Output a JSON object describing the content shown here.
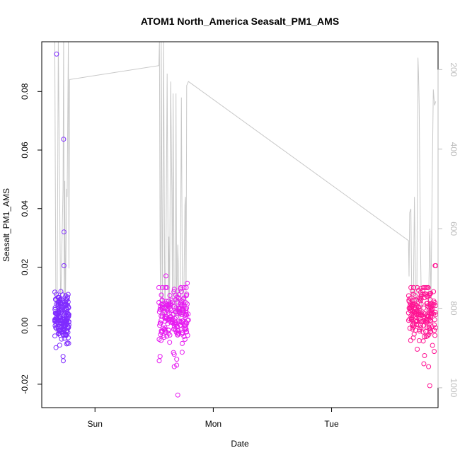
{
  "chart_data": {
    "type": "scatter",
    "title": "ATOM1 North_America Seasalt_PM1_AMS",
    "xlabel": "Date",
    "ylabel": "Seasalt_PM1_AMS",
    "x_ticks": [
      "Sun",
      "Mon",
      "Tue"
    ],
    "y_ticks": [
      "-0.02",
      "0.00",
      "0.02",
      "0.04",
      "0.06",
      "0.08"
    ],
    "y_tick_values": [
      -0.02,
      0.0,
      0.02,
      0.04,
      0.06,
      0.08
    ],
    "ylim": [
      -0.028,
      0.097
    ],
    "xlim_days": [
      -0.45,
      2.9
    ],
    "right_axis": {
      "ticks": [
        "200",
        "400",
        "600",
        "800",
        "1000"
      ],
      "tick_values": [
        200,
        400,
        600,
        800,
        1000
      ],
      "range_top": 130,
      "range_bottom": 1050,
      "color": "#bdbdbd",
      "description": "pressure trace (grey line), reversed axis"
    },
    "colors": {
      "group1": "#7f2bff",
      "group2": "#e61af0",
      "group3": "#ff1493",
      "line": "#c8c8c8"
    },
    "groups": [
      {
        "day_range": [
          -0.34,
          -0.22
        ],
        "outliers": [
          {
            "x": -0.325,
            "y": 0.0928
          },
          {
            "x": -0.265,
            "y": 0.0637
          },
          {
            "x": -0.262,
            "y": 0.032
          },
          {
            "x": -0.262,
            "y": 0.0205
          },
          {
            "x": -0.33,
            "y": -0.0075
          },
          {
            "x": -0.268,
            "y": -0.012
          },
          {
            "x": -0.27,
            "y": -0.0105
          }
        ],
        "n_points": 170,
        "center": 0.003,
        "spread": 0.004
      },
      {
        "day_range": [
          0.54,
          0.79
        ],
        "outliers": [
          {
            "x": 0.7,
            "y": -0.0237
          },
          {
            "x": 0.69,
            "y": -0.0135
          },
          {
            "x": 0.67,
            "y": -0.014
          },
          {
            "x": 0.6,
            "y": 0.017
          },
          {
            "x": 0.55,
            "y": -0.0105
          },
          {
            "x": 0.78,
            "y": 0.0145
          }
        ],
        "n_points": 190,
        "center": 0.003,
        "spread": 0.005
      },
      {
        "day_range": [
          2.65,
          2.88
        ],
        "outliers": [
          {
            "x": 2.83,
            "y": -0.0205
          },
          {
            "x": 2.78,
            "y": -0.013
          },
          {
            "x": 2.82,
            "y": -0.014
          },
          {
            "x": 2.88,
            "y": 0.0205
          },
          {
            "x": 2.875,
            "y": 0.0205
          }
        ],
        "n_points": 190,
        "center": 0.004,
        "spread": 0.005
      }
    ],
    "line_points": [
      [
        -0.34,
        130
      ],
      [
        -0.33,
        860
      ],
      [
        -0.32,
        820
      ],
      [
        -0.31,
        130
      ],
      [
        -0.29,
        800
      ],
      [
        -0.27,
        500
      ],
      [
        -0.265,
        130
      ],
      [
        -0.26,
        820
      ],
      [
        -0.255,
        480
      ],
      [
        -0.25,
        800
      ],
      [
        -0.24,
        500
      ],
      [
        -0.235,
        520
      ],
      [
        -0.225,
        130
      ],
      [
        -0.22,
        700
      ],
      [
        -0.215,
        225
      ],
      [
        0.54,
        190
      ],
      [
        0.545,
        130
      ],
      [
        0.55,
        650
      ],
      [
        0.555,
        820
      ],
      [
        0.56,
        130
      ],
      [
        0.57,
        820
      ],
      [
        0.58,
        130
      ],
      [
        0.59,
        830
      ],
      [
        0.6,
        660
      ],
      [
        0.61,
        210
      ],
      [
        0.62,
        800
      ],
      [
        0.625,
        620
      ],
      [
        0.63,
        820
      ],
      [
        0.64,
        230
      ],
      [
        0.65,
        520
      ],
      [
        0.655,
        800
      ],
      [
        0.66,
        260
      ],
      [
        0.67,
        820
      ],
      [
        0.68,
        820
      ],
      [
        0.685,
        260
      ],
      [
        0.69,
        820
      ],
      [
        0.7,
        640
      ],
      [
        0.705,
        700
      ],
      [
        0.71,
        820
      ],
      [
        0.72,
        840
      ],
      [
        0.73,
        270
      ],
      [
        0.74,
        820
      ],
      [
        0.75,
        800
      ],
      [
        0.76,
        540
      ],
      [
        0.765,
        520
      ],
      [
        0.77,
        800
      ],
      [
        0.775,
        240
      ],
      [
        0.79,
        230
      ],
      [
        2.65,
        630
      ],
      [
        2.655,
        720
      ],
      [
        2.66,
        560
      ],
      [
        2.67,
        550
      ],
      [
        2.68,
        850
      ],
      [
        2.69,
        820
      ],
      [
        2.7,
        520
      ],
      [
        2.71,
        760
      ],
      [
        2.72,
        820
      ],
      [
        2.73,
        170
      ],
      [
        2.735,
        210
      ],
      [
        2.74,
        290
      ],
      [
        2.75,
        610
      ],
      [
        2.76,
        820
      ],
      [
        2.77,
        830
      ],
      [
        2.8,
        820
      ],
      [
        2.81,
        790
      ],
      [
        2.82,
        800
      ],
      [
        2.83,
        600
      ],
      [
        2.84,
        780
      ],
      [
        2.85,
        500
      ],
      [
        2.86,
        250
      ],
      [
        2.87,
        290
      ],
      [
        2.88,
        280
      ]
    ],
    "legend": "none",
    "grid": false
  }
}
